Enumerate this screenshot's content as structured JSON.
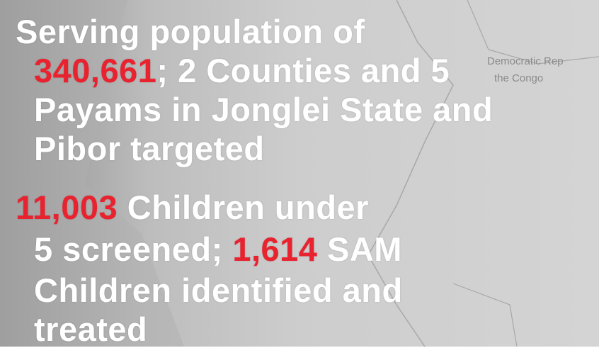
{
  "map_labels": [
    "Democratic Rep",
    "the Congo"
  ],
  "blocks": [
    {
      "lines": [
        [
          {
            "text": "Serving population of",
            "color": "#ffffff"
          }
        ],
        [
          {
            "text": "340,661",
            "color": "#e8232f"
          },
          {
            "text": "; 2 Counties and 5",
            "color": "#ffffff"
          }
        ],
        [
          {
            "text": "Payams in Jonglei State and",
            "color": "#ffffff"
          }
        ],
        [
          {
            "text": "Pibor targeted",
            "color": "#ffffff"
          }
        ]
      ]
    },
    {
      "lines": [
        [
          {
            "text": "11,003",
            "color": "#e8232f"
          },
          {
            "text": " Children under",
            "color": "#ffffff"
          }
        ],
        [
          {
            "text": "5 screened; ",
            "color": "#ffffff"
          },
          {
            "text": "1,614",
            "color": "#e8232f"
          },
          {
            "text": " SAM",
            "color": "#ffffff"
          }
        ],
        [
          {
            "text": "Children identified and",
            "color": "#ffffff"
          }
        ],
        [
          {
            "text": "treated",
            "color": "#ffffff"
          }
        ]
      ]
    }
  ]
}
